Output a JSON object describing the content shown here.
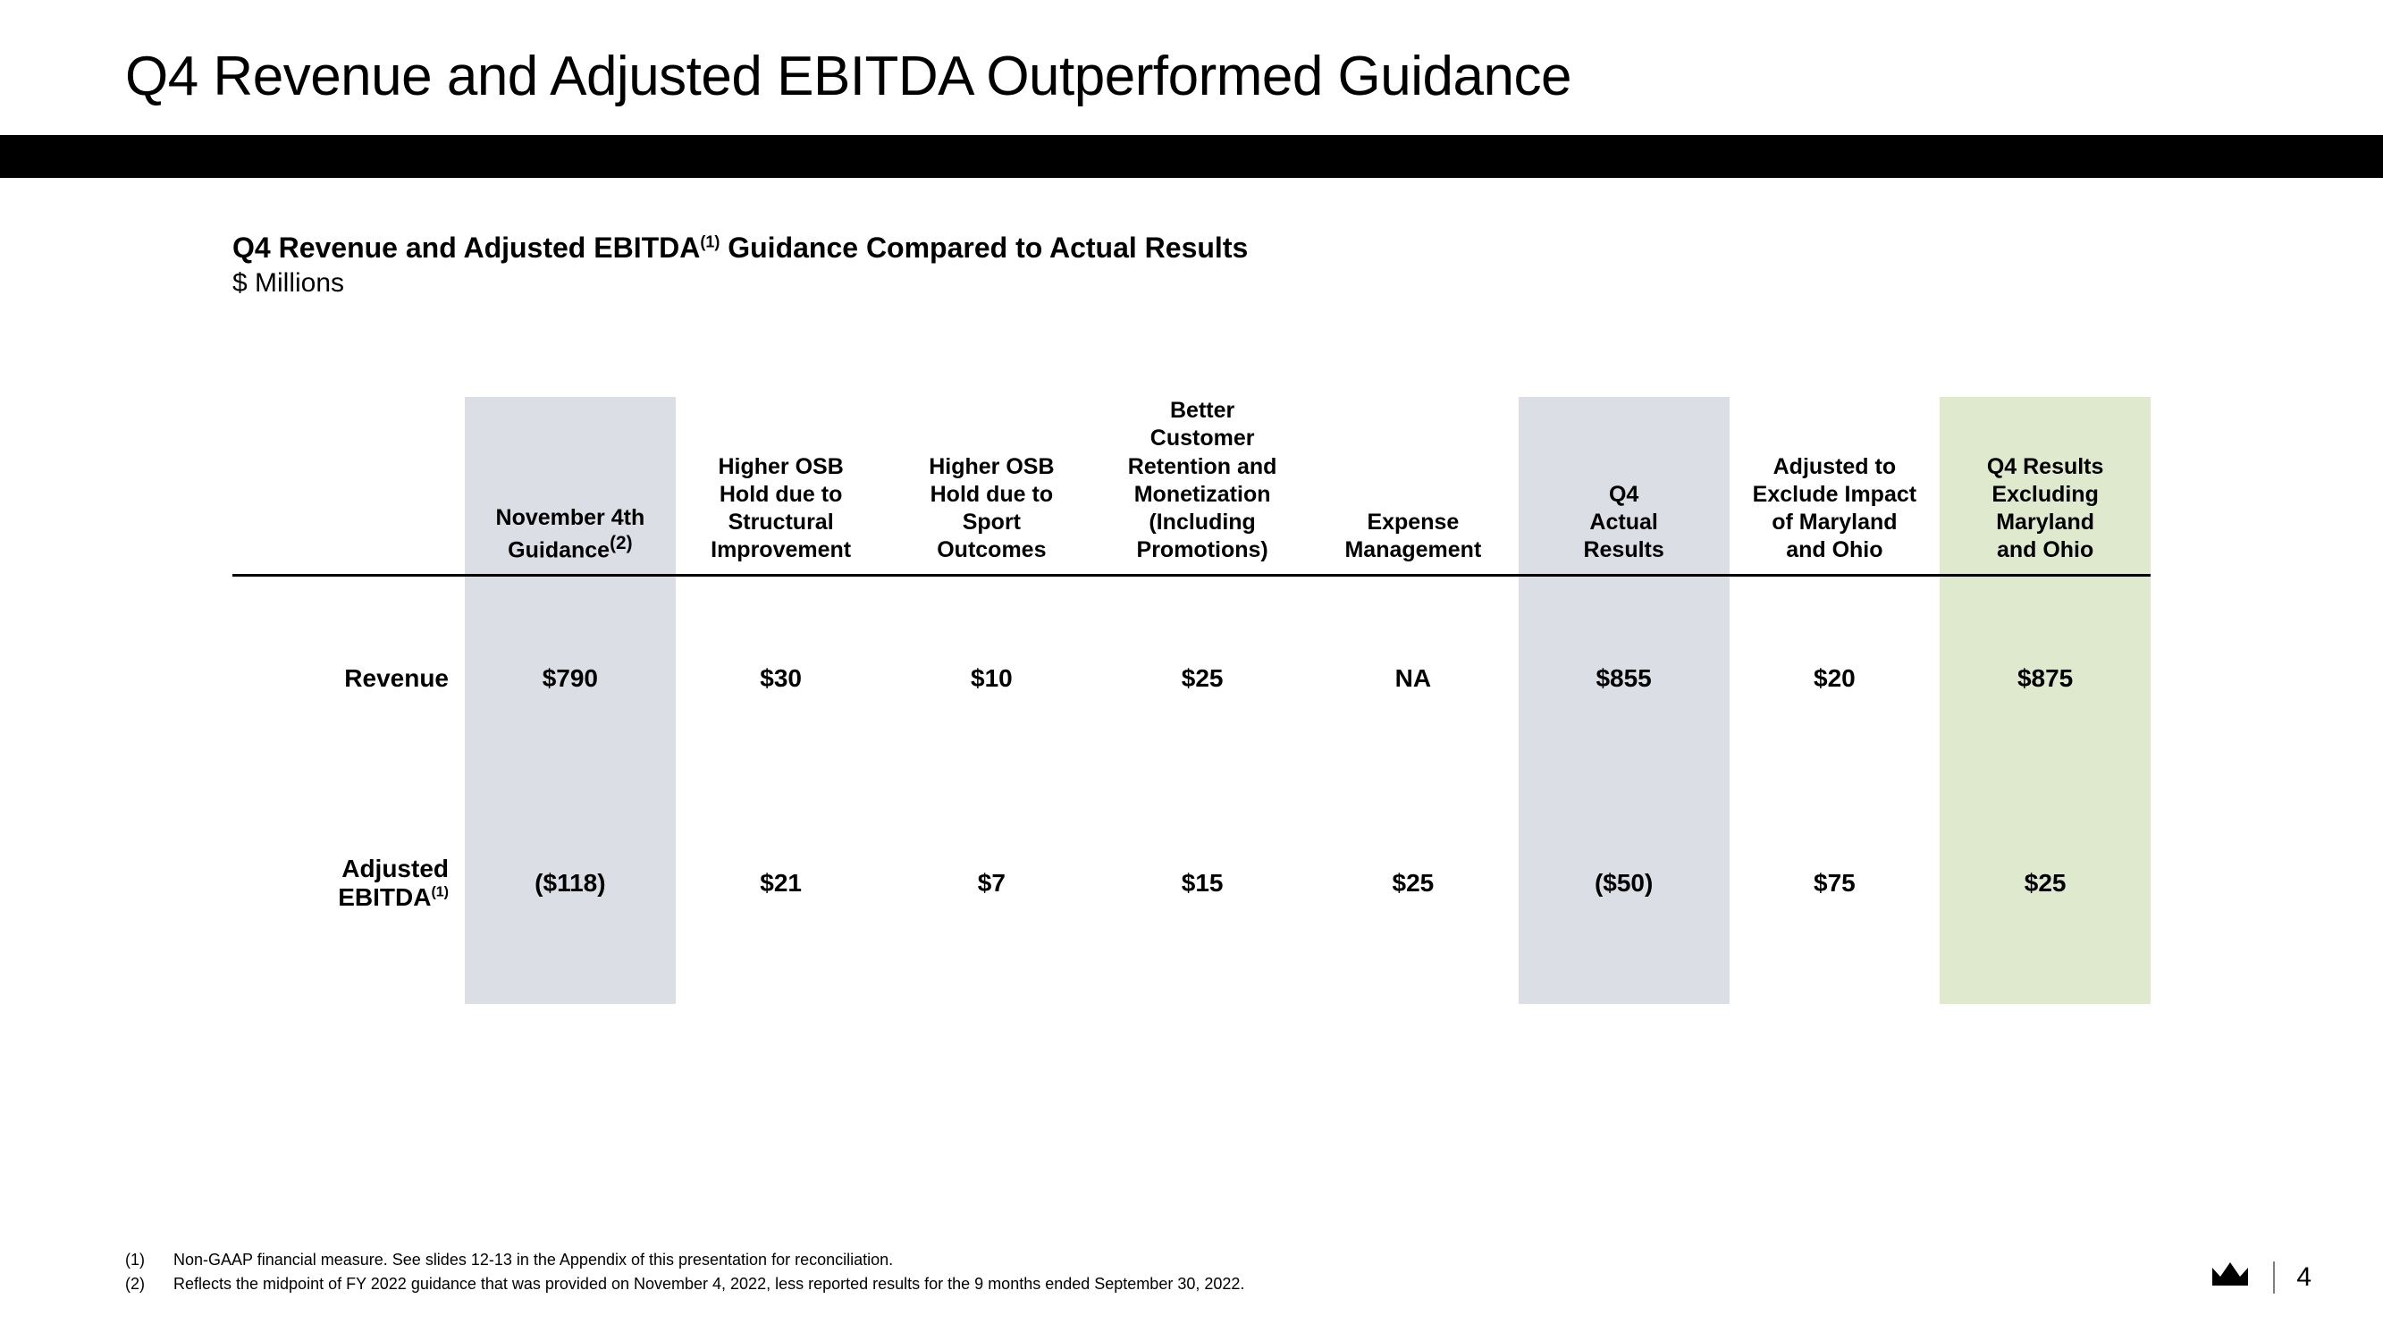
{
  "title": "Q4 Revenue and Adjusted EBITDA Outperformed Guidance",
  "subtitle_prefix": "Q4 Revenue and Adjusted EBITDA",
  "subtitle_sup": "(1)",
  "subtitle_suffix": " Guidance Compared to Actual Results",
  "units": "$ Millions",
  "columns": [
    {
      "label_lines": [
        "November 4th",
        "Guidance"
      ],
      "sup": "(2)",
      "highlight": "gray"
    },
    {
      "label_lines": [
        "Higher OSB",
        "Hold due to",
        "Structural",
        "Improvement"
      ],
      "highlight": null
    },
    {
      "label_lines": [
        "Higher OSB",
        "Hold due to",
        "Sport",
        "Outcomes"
      ],
      "highlight": null
    },
    {
      "label_lines": [
        "Better",
        "Customer",
        "Retention and",
        "Monetization",
        "(Including",
        "Promotions)"
      ],
      "highlight": null
    },
    {
      "label_lines": [
        "Expense",
        "Management"
      ],
      "highlight": null
    },
    {
      "label_lines": [
        "Q4",
        "Actual",
        "Results"
      ],
      "highlight": "gray"
    },
    {
      "label_lines": [
        "Adjusted to",
        "Exclude Impact",
        "of Maryland",
        "and Ohio"
      ],
      "highlight": null
    },
    {
      "label_lines": [
        "Q4 Results",
        "Excluding",
        "Maryland",
        "and Ohio"
      ],
      "highlight": "green"
    }
  ],
  "rows": [
    {
      "label": "Revenue",
      "sup": "",
      "values": [
        "$790",
        "$30",
        "$10",
        "$25",
        "NA",
        "$855",
        "$20",
        "$875"
      ]
    },
    {
      "label": "Adjusted EBITDA",
      "sup": "(1)",
      "values": [
        "($118)",
        "$21",
        "$7",
        "$15",
        "$25",
        "($50)",
        "$75",
        "$25"
      ]
    }
  ],
  "footnotes": [
    {
      "num": "(1)",
      "text": "Non-GAAP financial measure. See slides 12-13 in the Appendix of this presentation for reconciliation."
    },
    {
      "num": "(2)",
      "text": "Reflects the midpoint of FY 2022 guidance that was provided on November 4, 2022, less reported results for the 9 months ended September 30, 2022."
    }
  ],
  "page_number": "4",
  "colors": {
    "gray_highlight": "#dbdee4",
    "green_highlight": "#dfe9ce",
    "black": "#000000",
    "white": "#ffffff"
  }
}
